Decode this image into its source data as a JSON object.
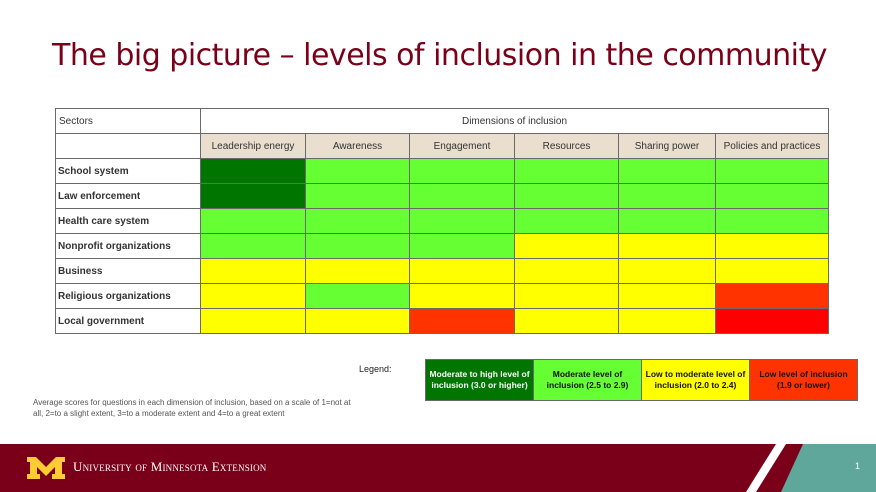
{
  "title": "The big picture – levels of inclusion in the community",
  "table": {
    "sectors_header": "Sectors",
    "dimensions_header": "Dimensions of inclusion",
    "dimensions": [
      "Leadership energy",
      "Awareness",
      "Engagement",
      "Resources",
      "Sharing power",
      "Policies and practices"
    ],
    "rows": [
      {
        "sector": "School system",
        "levels": [
          "high",
          "moderate",
          "moderate",
          "moderate",
          "moderate",
          "moderate"
        ]
      },
      {
        "sector": "Law enforcement",
        "levels": [
          "high",
          "moderate",
          "moderate",
          "moderate",
          "moderate",
          "moderate"
        ]
      },
      {
        "sector": "Health care system",
        "levels": [
          "moderate",
          "moderate",
          "moderate",
          "moderate",
          "moderate",
          "moderate"
        ]
      },
      {
        "sector": "Nonprofit organizations",
        "levels": [
          "moderate",
          "moderate",
          "moderate",
          "low_moderate",
          "low_moderate",
          "low_moderate"
        ]
      },
      {
        "sector": "Business",
        "levels": [
          "low_moderate",
          "low_moderate",
          "low_moderate",
          "low_moderate",
          "low_moderate",
          "low_moderate"
        ]
      },
      {
        "sector": "Religious organizations",
        "levels": [
          "low_moderate",
          "moderate",
          "low_moderate",
          "low_moderate",
          "low_moderate",
          "low"
        ]
      },
      {
        "sector": "Local government",
        "levels": [
          "low_moderate",
          "low_moderate",
          "low",
          "low_moderate",
          "low_moderate",
          "low_red"
        ]
      }
    ]
  },
  "colors": {
    "high": "#007500",
    "moderate": "#66ff33",
    "low_moderate": "#ffff00",
    "low": "#ff3300",
    "low_red": "#ff0000"
  },
  "legend": {
    "label": "Legend:",
    "items": [
      {
        "text": "Moderate to high level of inclusion (3.0 or higher)",
        "bg": "#007500",
        "fg": "#ffffff"
      },
      {
        "text": "Moderate level of inclusion (2.5 to 2.9)",
        "bg": "#66ff33",
        "fg": "#111111"
      },
      {
        "text": "Low to moderate level of inclusion (2.0 to 2.4)",
        "bg": "#ffff00",
        "fg": "#111111"
      },
      {
        "text": "Low level of inclusion (1.9 or lower)",
        "bg": "#ff3300",
        "fg": "#111111"
      }
    ]
  },
  "footnote": "Average scores for questions in each dimension of inclusion, based on a scale of 1=not at all, 2=to a slight extent, 3=to a moderate extent and 4=to a great extent",
  "footer": {
    "org": "University of Minnesota Extension",
    "page_number": "1"
  }
}
